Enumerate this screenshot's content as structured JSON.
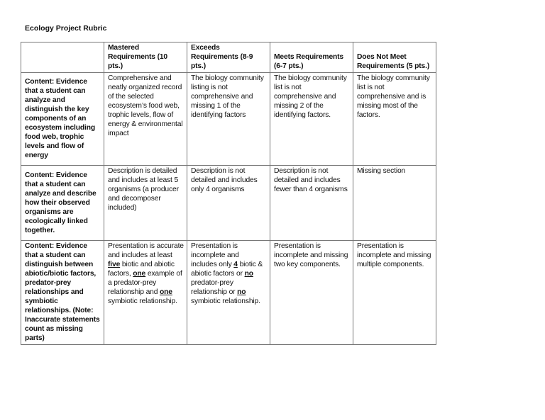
{
  "document": {
    "title": "Ecology Project Rubric",
    "columns": [
      "",
      "Mastered Requirements (10 pts.)",
      "Exceeds Requirements (8-9 pts.)",
      "Meets Requirements (6-7 pts.)",
      "Does Not Meet Requirements (5 pts.)"
    ],
    "rows": [
      {
        "criterion": "Content: Evidence that a student can analyze and distinguish the key components of an ecosystem including food web, trophic levels and flow of energy",
        "cells": [
          [
            {
              "t": "Comprehensive and neatly organized record of the selected ecosystem’s food web, trophic levels, flow of energy & environmental impact"
            }
          ],
          [
            {
              "t": "The biology community listing is not comprehensive and missing 1 of the identifying factors"
            }
          ],
          [
            {
              "t": "The biology community list is not comprehensive and missing 2 of the identifying factors."
            }
          ],
          [
            {
              "t": "The biology community list is not comprehensive and is missing most of the factors."
            }
          ]
        ]
      },
      {
        "criterion": "Content: Evidence that a student can analyze and describe how their observed organisms are ecologically linked together.",
        "cells": [
          [
            {
              "t": "Description is detailed and includes at least 5 organisms (a producer and decomposer included)"
            }
          ],
          [
            {
              "t": "Description is not detailed and includes only 4 organisms"
            }
          ],
          [
            {
              "t": "Description is not detailed and includes fewer than 4 organisms"
            }
          ],
          [
            {
              "t": "Missing section"
            }
          ]
        ]
      },
      {
        "criterion": "Content: Evidence that a student can distinguish between abiotic/biotic factors, predator-prey relationships and symbiotic relationships. (Note: Inaccurate statements count as missing parts)",
        "cells": [
          [
            {
              "t": "Presentation is accurate and includes at least "
            },
            {
              "t": "five",
              "u": true
            },
            {
              "t": " biotic and abiotic factors, "
            },
            {
              "t": "one",
              "u": true
            },
            {
              "t": " example of a predator-prey relationship and "
            },
            {
              "t": "one",
              "u": true
            },
            {
              "t": " symbiotic relationship."
            }
          ],
          [
            {
              "t": "Presentation is incomplete and includes only "
            },
            {
              "t": "4",
              "u": true
            },
            {
              "t": " biotic & abiotic factors or "
            },
            {
              "t": "no",
              "u": true
            },
            {
              "t": " predator-prey relationship or "
            },
            {
              "t": "no",
              "u": true
            },
            {
              "t": " symbiotic relationship."
            }
          ],
          [
            {
              "t": "Presentation is incomplete and missing two key components."
            }
          ],
          [
            {
              "t": "Presentation is incomplete and missing multiple components."
            }
          ]
        ]
      }
    ]
  }
}
